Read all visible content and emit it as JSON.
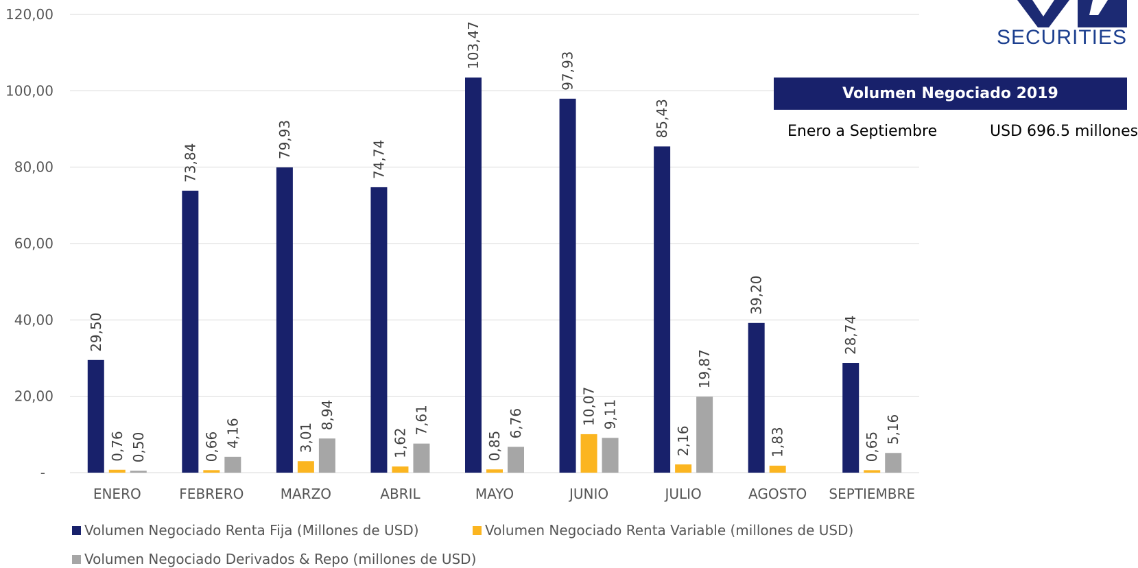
{
  "logo": {
    "text": "SECURITIES"
  },
  "info": {
    "title": "Volumen Negociado 2019",
    "range": "Enero a Septiembre",
    "total": "USD 696.5 millones"
  },
  "colors": {
    "renta_fija": "#18216b",
    "renta_variable": "#fbb520",
    "derivados": "#a6a6a6",
    "grid": "#d9d9d9"
  },
  "chart_data": {
    "type": "bar",
    "categories": [
      "ENERO",
      "FEBRERO",
      "MARZO",
      "ABRIL",
      "MAYO",
      "JUNIO",
      "JULIO",
      "AGOSTO",
      "SEPTIEMBRE"
    ],
    "series": [
      {
        "name": "Volumen Negociado Renta Fija (Millones de USD)",
        "values": [
          29.5,
          73.84,
          79.93,
          74.74,
          103.47,
          97.93,
          85.43,
          39.2,
          28.74
        ],
        "labels": [
          "29,50",
          "73,84",
          "79,93",
          "74,74",
          "103,47",
          "97,93",
          "85,43",
          "39,20",
          "28,74"
        ]
      },
      {
        "name": "Volumen Negociado Renta Variable (millones de USD)",
        "values": [
          0.76,
          0.66,
          3.01,
          1.62,
          0.85,
          10.07,
          2.16,
          1.83,
          0.65
        ],
        "labels": [
          "0,76",
          "0,66",
          "3,01",
          "1,62",
          "0,85",
          "10,07",
          "2,16",
          "1,83",
          "0,65"
        ]
      },
      {
        "name": "Volumen Negociado Derivados & Repo (millones de USD)",
        "values": [
          0.5,
          4.16,
          8.94,
          7.61,
          6.76,
          9.11,
          19.87,
          null,
          5.16
        ],
        "labels": [
          "0,50",
          "4,16",
          "8,94",
          "7,61",
          "6,76",
          "9,11",
          "19,87",
          null,
          "5,16"
        ]
      }
    ],
    "yticks": [
      "-",
      "20,00",
      "40,00",
      "60,00",
      "80,00",
      "100,00",
      "120,00"
    ],
    "ylim": [
      0,
      120
    ],
    "grid": true,
    "legend_position": "bottom"
  }
}
